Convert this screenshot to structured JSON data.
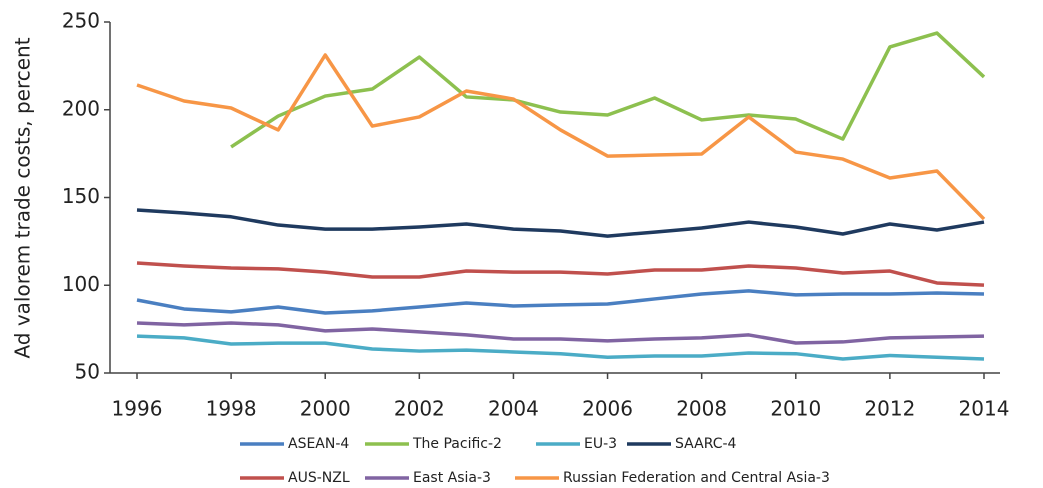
{
  "chart_data": {
    "type": "line",
    "y_label": "Ad valorem trade costs, percent",
    "x": [
      1996,
      1997,
      1998,
      1999,
      2000,
      2001,
      2002,
      2003,
      2004,
      2005,
      2006,
      2007,
      2008,
      2009,
      2010,
      2011,
      2012,
      2013,
      2014
    ],
    "xlim": [
      1996,
      2014
    ],
    "xticks": [
      1996,
      1998,
      2000,
      2002,
      2004,
      2006,
      2008,
      2010,
      2012,
      2014
    ],
    "ylim": [
      50,
      250
    ],
    "yticks": [
      50,
      100,
      150,
      200,
      250
    ],
    "series": [
      {
        "name": "ASEAN-4",
        "color": "#4a7fc1",
        "values": [
          91.6,
          86.5,
          84.8,
          87.6,
          84.2,
          85.4,
          87.6,
          89.9,
          88.2,
          88.8,
          89.3,
          92.2,
          95,
          96.8,
          94.5,
          95,
          95,
          95.6,
          95
        ]
      },
      {
        "name": "The Pacific-2",
        "color": "#8dc04f",
        "values": [
          null,
          null,
          178.8,
          196.4,
          207.8,
          211.8,
          230,
          207.3,
          205.6,
          198.7,
          197,
          206.7,
          194.2,
          197,
          194.7,
          183.3,
          235.8,
          243.7,
          218.7
        ]
      },
      {
        "name": "EU-3",
        "color": "#4bacc6",
        "values": [
          71,
          70,
          66.5,
          67,
          67,
          63.7,
          62.5,
          63,
          62,
          61,
          59,
          59.7,
          59.7,
          61.4,
          61,
          58,
          60,
          59,
          58
        ]
      },
      {
        "name": "SAARC-4",
        "color": "#1f3a5f",
        "values": [
          142.9,
          141.2,
          139,
          134.3,
          132,
          132,
          133.2,
          134.9,
          132,
          130.9,
          128,
          130.3,
          132.6,
          136,
          133.2,
          129.2,
          134.9,
          131.5,
          136
        ]
      },
      {
        "name": "AUS-NZL",
        "color": "#c0504d",
        "values": [
          112.7,
          111,
          109.8,
          109.3,
          107.5,
          104.7,
          104.7,
          108.1,
          107.5,
          107.5,
          106.4,
          108.7,
          108.7,
          111,
          109.8,
          107,
          108.1,
          101.3,
          100.1
        ]
      },
      {
        "name": "East Asia-3",
        "color": "#8064a2",
        "values": [
          78.5,
          77.4,
          78.5,
          77.4,
          74,
          75.1,
          73.4,
          71.7,
          69.4,
          69.4,
          68.3,
          69.4,
          70,
          71.7,
          67.1,
          67.7,
          70,
          70.5,
          71
        ]
      },
      {
        "name": "Russian Federation and Central Asia-3",
        "color": "#f79646",
        "values": [
          214.1,
          205,
          201,
          188.5,
          231.2,
          190.7,
          195.9,
          210.7,
          206.1,
          188.5,
          173.6,
          174.2,
          174.8,
          195.9,
          175.9,
          171.9,
          161.1,
          165.1,
          137.7
        ]
      }
    ]
  }
}
